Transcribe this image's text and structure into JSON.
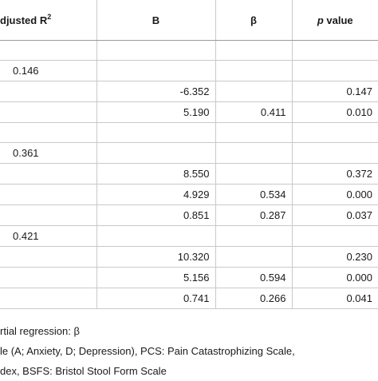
{
  "header": {
    "adjusted_r2": "djusted R",
    "adjusted_r2_sup": "2",
    "b": "B",
    "beta": "β",
    "p_italic": "p",
    "p_rest": " value"
  },
  "rows": [
    {
      "adj": "",
      "b": "",
      "beta": "",
      "p": ""
    },
    {
      "adj": "0.146",
      "b": "",
      "beta": "",
      "p": ""
    },
    {
      "adj": "",
      "b": "-6.352",
      "beta": "",
      "p": "0.147"
    },
    {
      "adj": "",
      "b": "5.190",
      "beta": "0.411",
      "p": "0.010"
    },
    {
      "adj": "",
      "b": "",
      "beta": "",
      "p": ""
    },
    {
      "adj": "0.361",
      "b": "",
      "beta": "",
      "p": ""
    },
    {
      "adj": "",
      "b": "8.550",
      "beta": "",
      "p": "0.372"
    },
    {
      "adj": "",
      "b": "4.929",
      "beta": "0.534",
      "p": "0.000"
    },
    {
      "adj": "",
      "b": "0.851",
      "beta": "0.287",
      "p": "0.037"
    },
    {
      "adj": "0.421",
      "b": "",
      "beta": "",
      "p": ""
    },
    {
      "adj": "",
      "b": "10.320",
      "beta": "",
      "p": "0.230"
    },
    {
      "adj": "",
      "b": "5.156",
      "beta": "0.594",
      "p": "0.000"
    },
    {
      "adj": "",
      "b": "0.741",
      "beta": "0.266",
      "p": "0.041"
    }
  ],
  "notes": [
    "rtial regression: β",
    "le (A; Anxiety, D; Depression), PCS: Pain Catastrophizing Scale,",
    "dex, BSFS: Bristol Stool Form Scale"
  ]
}
